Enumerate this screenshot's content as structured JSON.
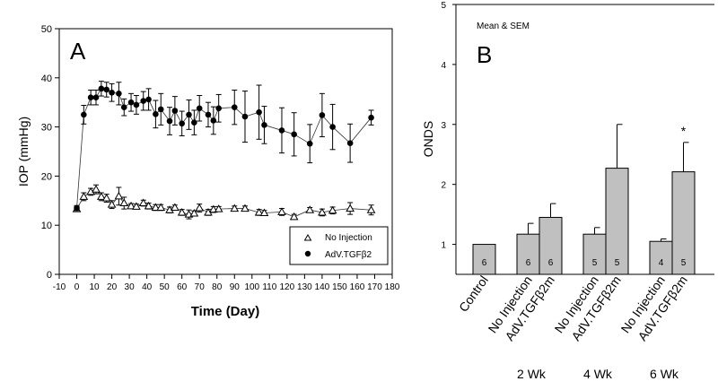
{
  "chart_data": [
    {
      "type": "line",
      "panel_label": "A",
      "title": "",
      "xlabel": "Time (Day)",
      "ylabel": "IOP (mmHg)",
      "xlim": [
        -10,
        180
      ],
      "ylim": [
        0,
        50
      ],
      "xticks": [
        -10,
        0,
        10,
        20,
        30,
        40,
        50,
        60,
        70,
        80,
        90,
        100,
        110,
        120,
        130,
        140,
        150,
        160,
        170,
        180
      ],
      "yticks": [
        0,
        10,
        20,
        30,
        40,
        50
      ],
      "legend_position": "bottom-right",
      "series": [
        {
          "name": "No Injection",
          "marker": "open-triangle",
          "x": [
            0,
            4,
            8,
            11,
            14,
            17,
            20,
            24,
            27,
            31,
            34,
            38,
            41,
            45,
            48,
            53,
            56,
            60,
            64,
            67,
            70,
            75,
            78,
            81,
            90,
            96,
            104,
            107,
            117,
            124,
            133,
            140,
            146,
            156,
            168
          ],
          "y": [
            13.3,
            15.8,
            16.8,
            17.3,
            15.8,
            15.5,
            14.2,
            15.9,
            14.5,
            13.9,
            13.8,
            14.5,
            13.9,
            13.6,
            13.6,
            13.1,
            13.6,
            12.6,
            12.2,
            12.4,
            13.5,
            12.6,
            13.2,
            13.3,
            13.4,
            13.4,
            12.6,
            12.5,
            12.7,
            11.7,
            13.1,
            12.6,
            13.0,
            13.4,
            13.1
          ],
          "sem": [
            0.5,
            0.8,
            0.7,
            0.9,
            0.8,
            0.8,
            0.8,
            1.8,
            1.2,
            0.5,
            0.5,
            0.6,
            0.6,
            0.6,
            0.6,
            0.6,
            0.5,
            0.6,
            0.9,
            0.5,
            0.8,
            0.6,
            0.6,
            0.5,
            0.5,
            0.5,
            0.6,
            0.5,
            0.7,
            0.5,
            0.5,
            0.7,
            0.7,
            1.2,
            1.0
          ]
        },
        {
          "name": "AdV.TGFβ2",
          "marker": "filled-circle",
          "x": [
            0,
            4,
            8,
            11,
            14,
            17,
            20,
            24,
            27,
            31,
            34,
            38,
            41,
            45,
            48,
            53,
            56,
            60,
            64,
            67,
            70,
            75,
            78,
            81,
            90,
            96,
            104,
            107,
            117,
            124,
            133,
            140,
            146,
            156,
            168
          ],
          "y": [
            13.5,
            32.5,
            36.0,
            36.0,
            37.8,
            37.6,
            37.0,
            36.8,
            34.0,
            35.0,
            34.5,
            35.3,
            35.6,
            32.6,
            33.6,
            31.2,
            33.3,
            30.7,
            32.5,
            30.9,
            33.8,
            32.5,
            31.3,
            33.8,
            34.0,
            32.1,
            33.0,
            30.4,
            29.3,
            28.5,
            26.6,
            32.4,
            30.0,
            26.7,
            31.9
          ],
          "sem": [
            0.5,
            1.9,
            1.5,
            1.5,
            1.5,
            1.5,
            1.8,
            2.3,
            1.7,
            1.8,
            1.9,
            1.9,
            2.2,
            2.8,
            3.2,
            2.8,
            2.9,
            2.5,
            3.0,
            2.5,
            2.6,
            2.5,
            2.8,
            2.8,
            3.5,
            5.2,
            5.5,
            3.8,
            4.6,
            4.4,
            3.9,
            4.4,
            4.6,
            3.9,
            1.5
          ]
        }
      ]
    },
    {
      "type": "bar",
      "panel_label": "B",
      "annotation": "Mean & SEM",
      "ylabel": "ONDS",
      "xlabel": "",
      "ylim": [
        0.5,
        5
      ],
      "yticks": [
        1,
        2,
        3,
        4,
        5
      ],
      "categories": [
        "Control",
        "No Injection",
        "AdV.TGFβ2m",
        "No Injection",
        "AdV.TGFβ2m",
        "No Injection",
        "AdV.TGFβ2m"
      ],
      "groups": [
        "2 Wk",
        "4 Wk",
        "6 Wk"
      ],
      "values": [
        1.0,
        1.17,
        1.45,
        1.17,
        2.27,
        1.05,
        2.21
      ],
      "sem": [
        0,
        0.18,
        0.23,
        0.11,
        0.73,
        0.04,
        0.49
      ],
      "n_labels": [
        "6",
        "6",
        "6",
        "5",
        "5",
        "4",
        "5"
      ],
      "significance": [
        "",
        "",
        "",
        "",
        "",
        "",
        "*"
      ],
      "bar_color": "#c0c0c0"
    }
  ]
}
